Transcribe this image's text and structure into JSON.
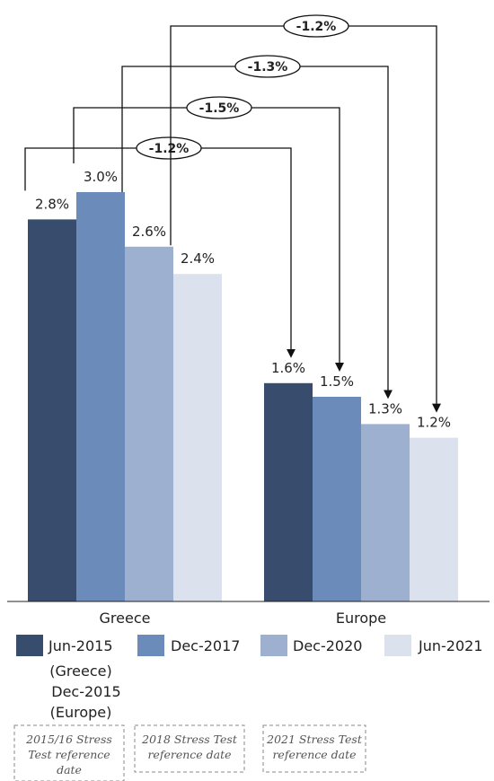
{
  "chart_data": {
    "type": "bar",
    "categories": [
      "Greece",
      "Europe"
    ],
    "series": [
      {
        "name": "Jun-2015",
        "values": [
          2.8,
          1.6
        ],
        "color": "#384C6E"
      },
      {
        "name": "Dec-2017",
        "values": [
          3.0,
          1.5
        ],
        "color": "#6B8CBA"
      },
      {
        "name": "Dec-2020",
        "values": [
          2.6,
          1.3
        ],
        "color": "#9DB0CF"
      },
      {
        "name": "Jun-2021",
        "values": [
          2.4,
          1.2
        ],
        "color": "#DCE2ED"
      }
    ],
    "data_labels": [
      [
        "2.8%",
        "1.6%"
      ],
      [
        "3.0%",
        "1.5%"
      ],
      [
        "2.6%",
        "1.3%"
      ],
      [
        "2.4%",
        "1.2%"
      ]
    ],
    "differences": [
      {
        "series": "Jun-2015",
        "label": "-1.2%"
      },
      {
        "series": "Dec-2017",
        "label": "-1.5%"
      },
      {
        "series": "Dec-2020",
        "label": "-1.3%"
      },
      {
        "series": "Jun-2021",
        "label": "-1.2%"
      }
    ],
    "legend_placement": "bottom",
    "legend_extra_note": [
      "(Greece)",
      "Dec-2015",
      "(Europe)"
    ],
    "grid": false,
    "title": "",
    "xlabel": "",
    "ylabel": ""
  },
  "notes": [
    {
      "lines": [
        "2015/16 Stress",
        "Test reference",
        "date"
      ]
    },
    {
      "lines": [
        "2018 Stress Test",
        "reference date"
      ]
    },
    {
      "lines": [
        "2021 Stress Test",
        "reference date"
      ]
    }
  ]
}
